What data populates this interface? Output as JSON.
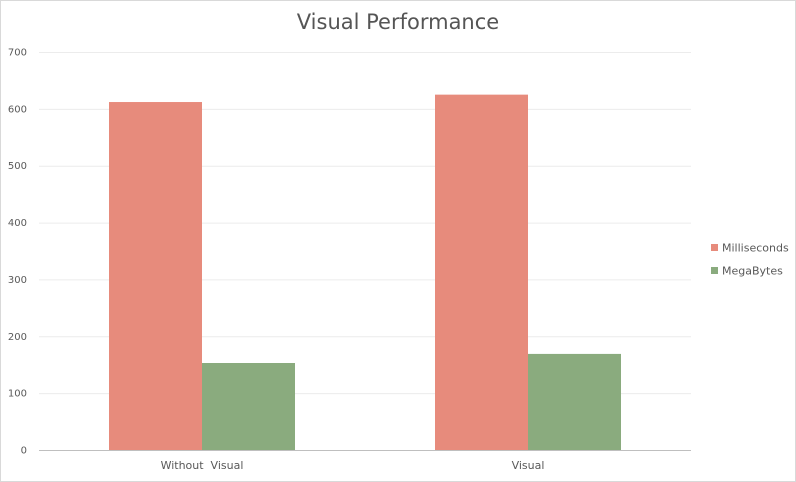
{
  "chart_data": {
    "type": "bar",
    "title": "Visual Performance",
    "xlabel": "",
    "ylabel": "",
    "categories": [
      "Without  Visual",
      "Visual"
    ],
    "series": [
      {
        "name": "Milliseconds",
        "values": [
          612,
          625
        ],
        "color": "#e78b7c"
      },
      {
        "name": "MegaBytes",
        "values": [
          153,
          169
        ],
        "color": "#8aab7e"
      }
    ],
    "ylim": [
      0,
      700
    ],
    "yticks": [
      0,
      100,
      200,
      300,
      400,
      500,
      600,
      700
    ],
    "grid": true,
    "legend_position": "right"
  }
}
